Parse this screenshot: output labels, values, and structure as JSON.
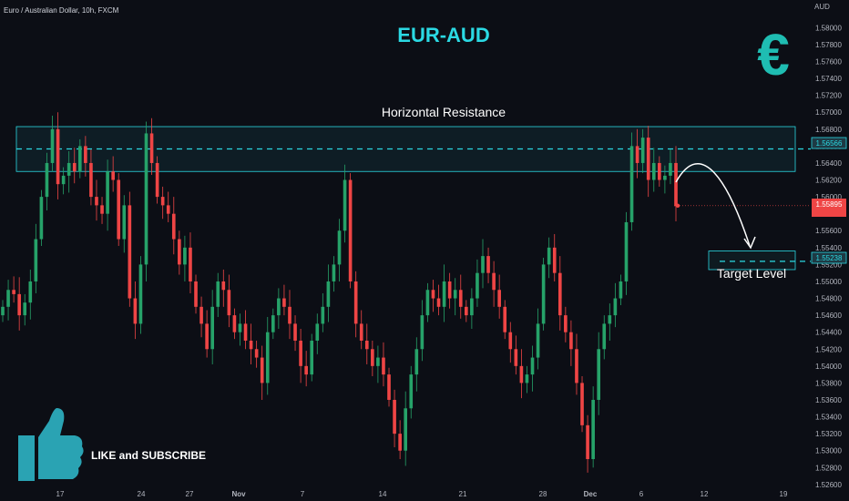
{
  "header": {
    "symbol_text": "Euro / Australian Dollar, 10h, FXCM",
    "price_axis_unit": "AUD"
  },
  "annotations": {
    "title": "EUR-AUD",
    "resistance_label": "Horizontal Resistance",
    "target_label": "Target Level",
    "cta_text": "LIKE and SUBSCRIBE",
    "euro_symbol": "€"
  },
  "icons": {
    "thumbs_up": "thumbs-up-icon",
    "euro": "euro-icon"
  },
  "colors": {
    "background": "#0c0e15",
    "bull": "#26a269",
    "bear": "#ef4545",
    "accent": "#2bd9e3",
    "text": "#ffffff"
  },
  "badges": {
    "resistance_price": "1.56566",
    "current_price": "1.55895",
    "target_price": "1.55238"
  },
  "chart_data": {
    "type": "candlestick",
    "title": "",
    "xlabel": "",
    "ylabel": "AUD",
    "ylim": [
      1.5262,
      1.5809
    ],
    "y_ticks": [
      "1.58000",
      "1.57800",
      "1.57600",
      "1.57400",
      "1.57200",
      "1.57000",
      "1.56800",
      "1.56600",
      "1.56400",
      "1.56200",
      "1.56000",
      "1.55800",
      "1.55600",
      "1.55400",
      "1.55200",
      "1.55000",
      "1.54800",
      "1.54600",
      "1.54400",
      "1.54200",
      "1.54000",
      "1.53800",
      "1.53600",
      "1.53400",
      "1.53200",
      "1.53000",
      "1.52800",
      "1.52600"
    ],
    "x_ticks": [
      "17",
      "24",
      "27",
      "Nov",
      "7",
      "14",
      "21",
      "28",
      "Dec",
      "6",
      "12",
      "19"
    ],
    "grid": false,
    "resistance_zone": [
      1.563,
      1.5683
    ],
    "resistance_level": 1.56566,
    "target_level": 1.55238,
    "target_zone": [
      1.5514,
      1.5536
    ],
    "current_price": 1.55895,
    "closes": [
      1.547,
      1.549,
      1.5485,
      1.546,
      1.5475,
      1.55,
      1.555,
      1.56,
      1.564,
      1.568,
      1.5615,
      1.5625,
      1.564,
      1.563,
      1.566,
      1.564,
      1.56,
      1.559,
      1.558,
      1.563,
      1.562,
      1.555,
      1.559,
      1.548,
      1.545,
      1.552,
      1.5675,
      1.564,
      1.56,
      1.559,
      1.558,
      1.555,
      1.552,
      1.554,
      1.55,
      1.547,
      1.545,
      1.542,
      1.547,
      1.55,
      1.549,
      1.546,
      1.544,
      1.545,
      1.543,
      1.542,
      1.541,
      1.538,
      1.544,
      1.546,
      1.548,
      1.547,
      1.545,
      1.543,
      1.54,
      1.539,
      1.543,
      1.545,
      1.547,
      1.55,
      1.552,
      1.556,
      1.562,
      1.55,
      1.545,
      1.543,
      1.542,
      1.54,
      1.541,
      1.539,
      1.536,
      1.532,
      1.53,
      1.535,
      1.539,
      1.542,
      1.546,
      1.549,
      1.548,
      1.547,
      1.55,
      1.548,
      1.549,
      1.547,
      1.546,
      1.548,
      1.551,
      1.553,
      1.551,
      1.549,
      1.547,
      1.544,
      1.542,
      1.54,
      1.538,
      1.539,
      1.541,
      1.545,
      1.552,
      1.554,
      1.551,
      1.546,
      1.544,
      1.542,
      1.538,
      1.533,
      1.529,
      1.536,
      1.542,
      1.545,
      1.546,
      1.548,
      1.55,
      1.557,
      1.566,
      1.564,
      1.567,
      1.562,
      1.564,
      1.562,
      1.5625,
      1.564,
      1.5589
    ]
  }
}
